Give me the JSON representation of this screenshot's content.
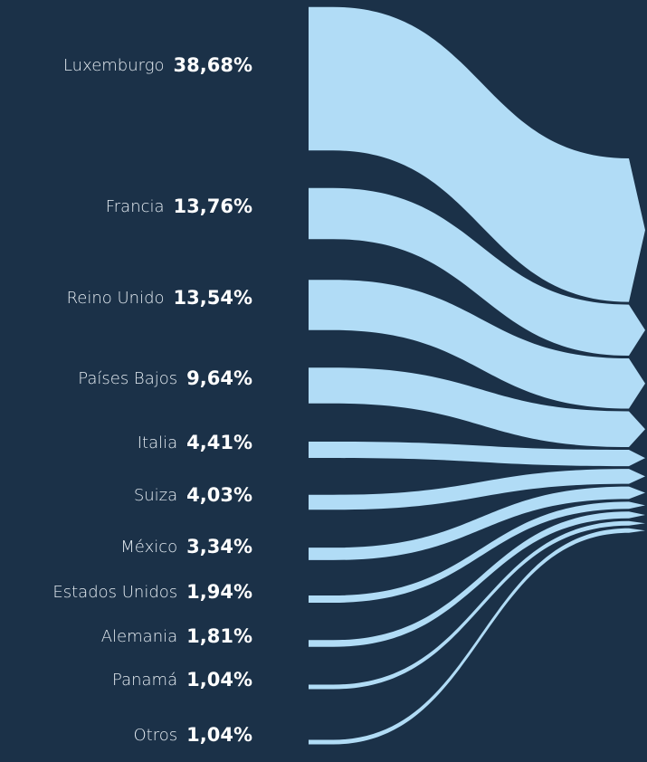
{
  "chart_data": {
    "type": "sankey",
    "categories": [
      "Luxemburgo",
      "Francia",
      "Reino Unido",
      "Países Bajos",
      "Italia",
      "Suiza",
      "México",
      "Estados Unidos",
      "Alemania",
      "Panamá",
      "Otros"
    ],
    "values": [
      38.68,
      13.76,
      13.54,
      9.64,
      4.41,
      4.03,
      3.34,
      1.94,
      1.81,
      1.04,
      1.04
    ],
    "value_labels": [
      "38,68%",
      "13,76%",
      "13,54%",
      "9,64%",
      "4,41%",
      "4,03%",
      "3,34%",
      "1,94%",
      "1,81%",
      "1,04%",
      "1,04%"
    ],
    "color": "#b1dcf6"
  }
}
